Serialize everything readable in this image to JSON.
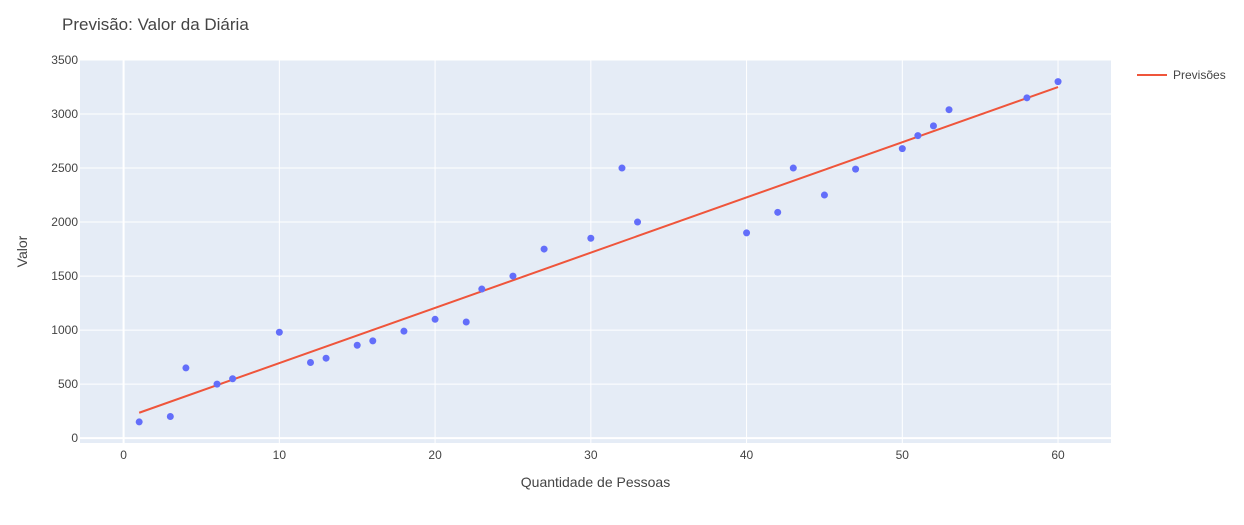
{
  "chart_data": {
    "type": "scatter",
    "title": "Previsão: Valor da Diária",
    "xlabel": "Quantidade de Pessoas",
    "ylabel": "Valor",
    "xlim": [
      -2.8,
      63.4
    ],
    "ylim": [
      -45,
      3500
    ],
    "x_ticks": [
      0,
      10,
      20,
      30,
      40,
      50,
      60
    ],
    "y_ticks": [
      0,
      500,
      1000,
      1500,
      2000,
      2500,
      3000,
      3500
    ],
    "grid": true,
    "legend_position": "top-right",
    "points": {
      "color": "#636efa",
      "x": [
        1,
        3,
        4,
        6,
        7,
        10,
        12,
        13,
        15,
        16,
        18,
        20,
        22,
        23,
        25,
        27,
        30,
        32,
        33,
        40,
        42,
        43,
        45,
        47,
        50,
        51,
        52,
        53,
        58,
        60
      ],
      "y": [
        150,
        200,
        650,
        500,
        550,
        980,
        700,
        740,
        860,
        900,
        990,
        1100,
        1075,
        1380,
        1500,
        1750,
        1850,
        2500,
        2000,
        1900,
        2090,
        2500,
        2250,
        2490,
        2680,
        2800,
        2890,
        3040,
        3150,
        3300
      ]
    },
    "series": [
      {
        "name": "Previsões",
        "type": "line",
        "color": "#ef553b",
        "x": [
          1,
          60
        ],
        "y": [
          235,
          3250
        ]
      }
    ]
  }
}
